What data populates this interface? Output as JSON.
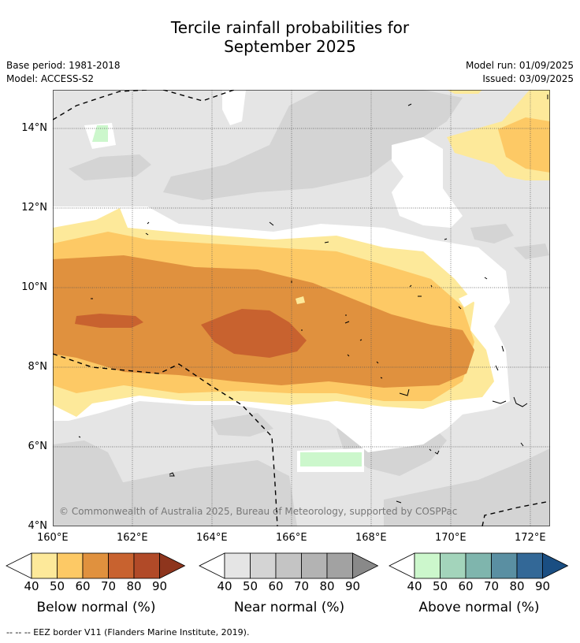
{
  "header": {
    "title_line1": "Tercile rainfall probabilities for",
    "title_line2": "September 2025",
    "base_period": "Base period: 1981-2018",
    "model": "Model: ACCESS-S2",
    "model_run": "Model run: 01/09/2025",
    "issued": "Issued: 03/09/2025"
  },
  "map": {
    "lat_labels": [
      "14°N",
      "12°N",
      "10°N",
      "8°N",
      "6°N",
      "4°N"
    ],
    "lon_labels": [
      "160°E",
      "162°E",
      "164°E",
      "166°E",
      "168°E",
      "170°E",
      "172°E"
    ],
    "copyright": "© Commonwealth of Australia 2025, Bureau of Meteorology, supported by COSPPac"
  },
  "colorbars": [
    {
      "label": "Below normal (%)",
      "ticks": [
        "40",
        "50",
        "60",
        "70",
        "80",
        "90"
      ],
      "colors": [
        "#fde99a",
        "#fdc965",
        "#e0913e",
        "#c8622f",
        "#b14a28",
        "#8e351d"
      ]
    },
    {
      "label": "Near normal (%)",
      "ticks": [
        "40",
        "50",
        "60",
        "70",
        "80",
        "90"
      ],
      "colors": [
        "#e5e5e5",
        "#d4d4d4",
        "#c4c4c4",
        "#b3b3b3",
        "#a2a2a2",
        "#898989"
      ]
    },
    {
      "label": "Above normal (%)",
      "ticks": [
        "40",
        "50",
        "60",
        "70",
        "80",
        "90"
      ],
      "colors": [
        "#ccf7cc",
        "#a3d4bb",
        "#7fb5ad",
        "#5a8fa2",
        "#336897",
        "#1a4e82"
      ]
    }
  ],
  "footer": "--  --  -- EEZ border V11 (Flanders Marine Institute, 2019)."
}
